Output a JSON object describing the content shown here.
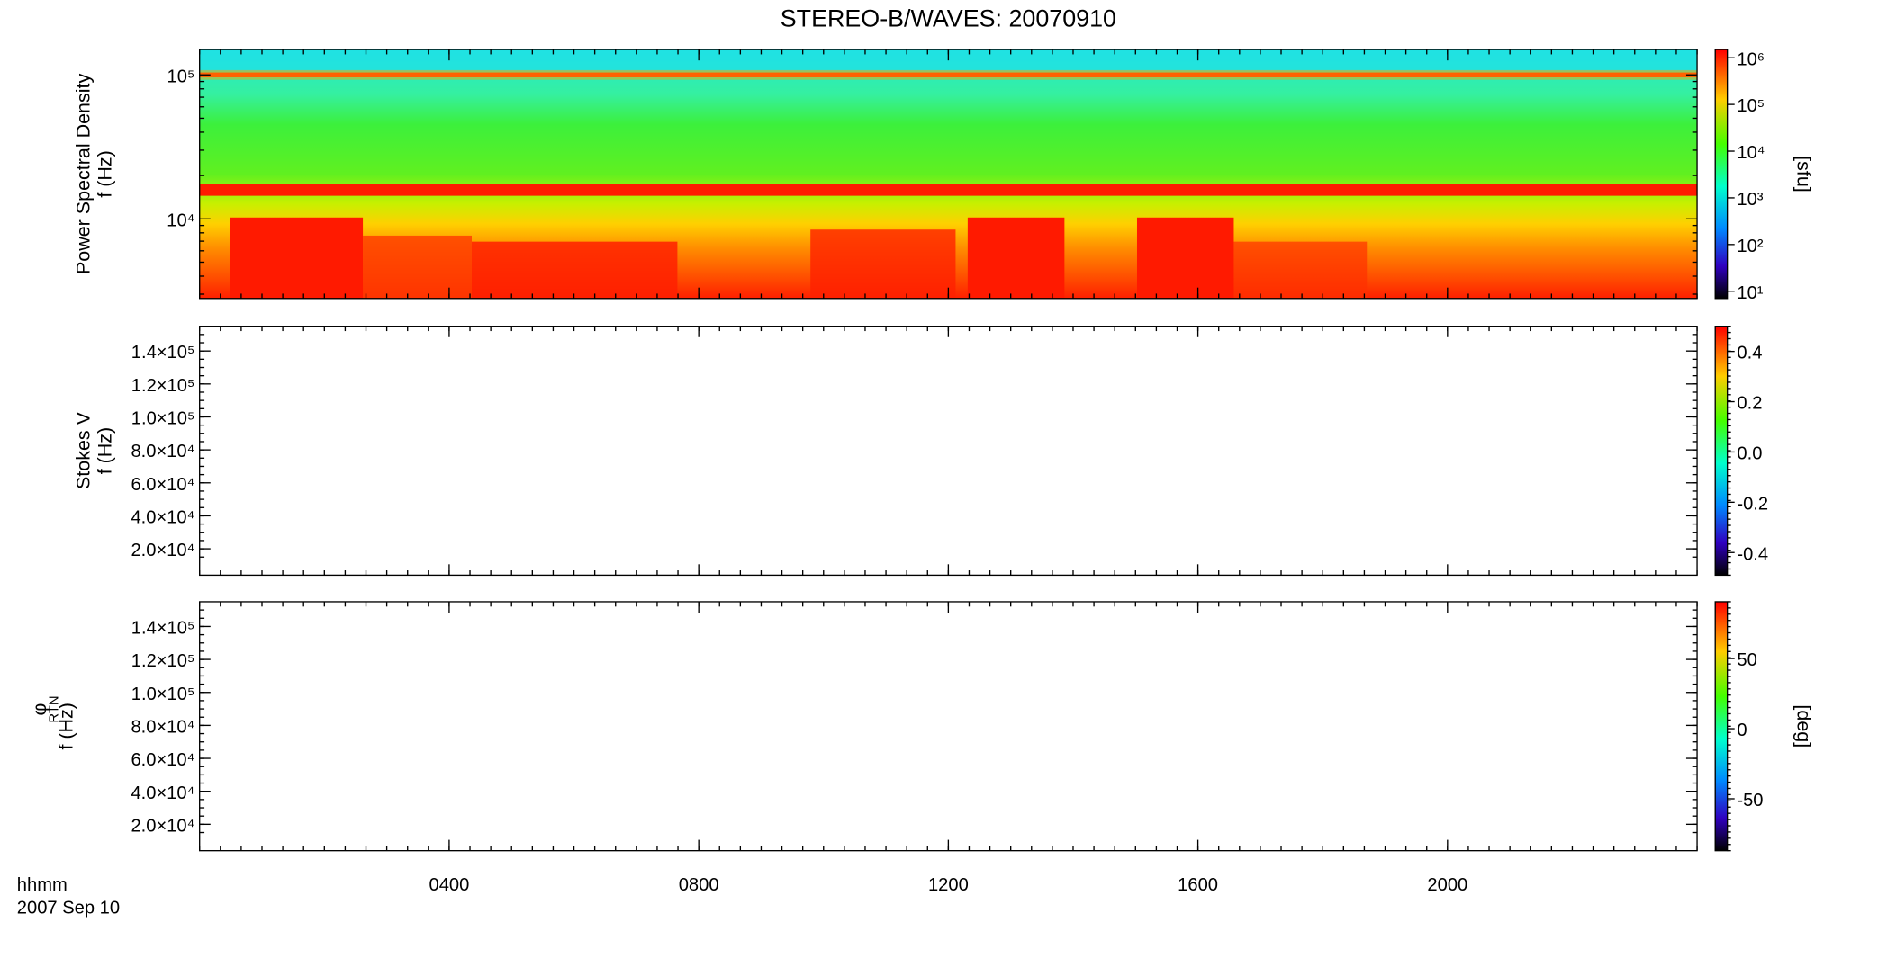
{
  "title": "STEREO-B/WAVES: 20070910",
  "time_axis": {
    "label": "hhmm",
    "date": "2007 Sep 10",
    "xlim": [
      0,
      24
    ],
    "xticks": [
      {
        "value": 4,
        "label": "0400"
      },
      {
        "value": 8,
        "label": "0800"
      },
      {
        "value": 12,
        "label": "1200"
      },
      {
        "value": 16,
        "label": "1600"
      },
      {
        "value": 20,
        "label": "2000"
      }
    ]
  },
  "chart_data": [
    {
      "type": "spectrogram",
      "ylabel": [
        "Power Spectral Density",
        "f (Hz)"
      ],
      "ylog": true,
      "ylim": [
        2800,
        150000
      ],
      "yticks": [
        {
          "value": 10000,
          "label": "10⁴"
        },
        {
          "value": 100000,
          "label": "10⁵"
        }
      ],
      "colorbar": {
        "log": true,
        "lim": [
          7,
          1500000
        ],
        "label": "[sfu]",
        "ticks": [
          {
            "value": 10,
            "label": "10¹"
          },
          {
            "value": 100,
            "label": "10²"
          },
          {
            "value": 1000,
            "label": "10³"
          },
          {
            "value": 10000,
            "label": "10⁴"
          },
          {
            "value": 100000,
            "label": "10⁵"
          },
          {
            "value": 1000000,
            "label": "10⁶"
          }
        ]
      }
    },
    {
      "type": "spectrogram",
      "ylabel": [
        "Stokes V",
        "f (Hz)"
      ],
      "ylog": false,
      "ylim": [
        4000,
        155000
      ],
      "yticks": [
        {
          "value": 20000,
          "label": "2.0×10⁴"
        },
        {
          "value": 40000,
          "label": "4.0×10⁴"
        },
        {
          "value": 60000,
          "label": "6.0×10⁴"
        },
        {
          "value": 80000,
          "label": "8.0×10⁴"
        },
        {
          "value": 100000,
          "label": "1.0×10⁵"
        },
        {
          "value": 120000,
          "label": "1.2×10⁵"
        },
        {
          "value": 140000,
          "label": "1.4×10⁵"
        }
      ],
      "colorbar": {
        "log": false,
        "lim": [
          -0.49,
          0.5
        ],
        "ticks": [
          -0.4,
          -0.2,
          {
            "value": 0,
            "label": "0.0"
          },
          0.2,
          0.4
        ]
      }
    },
    {
      "type": "spectrogram",
      "ylabel": [
        "φ",
        "f (Hz)"
      ],
      "ylabel_subscript": "RTN",
      "ylog": false,
      "ylim": [
        4000,
        155000
      ],
      "yticks": [
        {
          "value": 20000,
          "label": "2.0×10⁴"
        },
        {
          "value": 40000,
          "label": "4.0×10⁴"
        },
        {
          "value": 60000,
          "label": "6.0×10⁴"
        },
        {
          "value": 80000,
          "label": "8.0×10⁴"
        },
        {
          "value": 100000,
          "label": "1.0×10⁵"
        },
        {
          "value": 120000,
          "label": "1.2×10⁵"
        },
        {
          "value": 140000,
          "label": "1.4×10⁵"
        }
      ],
      "colorbar": {
        "log": false,
        "lim": [
          -87,
          90.5
        ],
        "label": "[deg]",
        "ticks": [
          -50,
          0,
          50
        ]
      }
    }
  ]
}
